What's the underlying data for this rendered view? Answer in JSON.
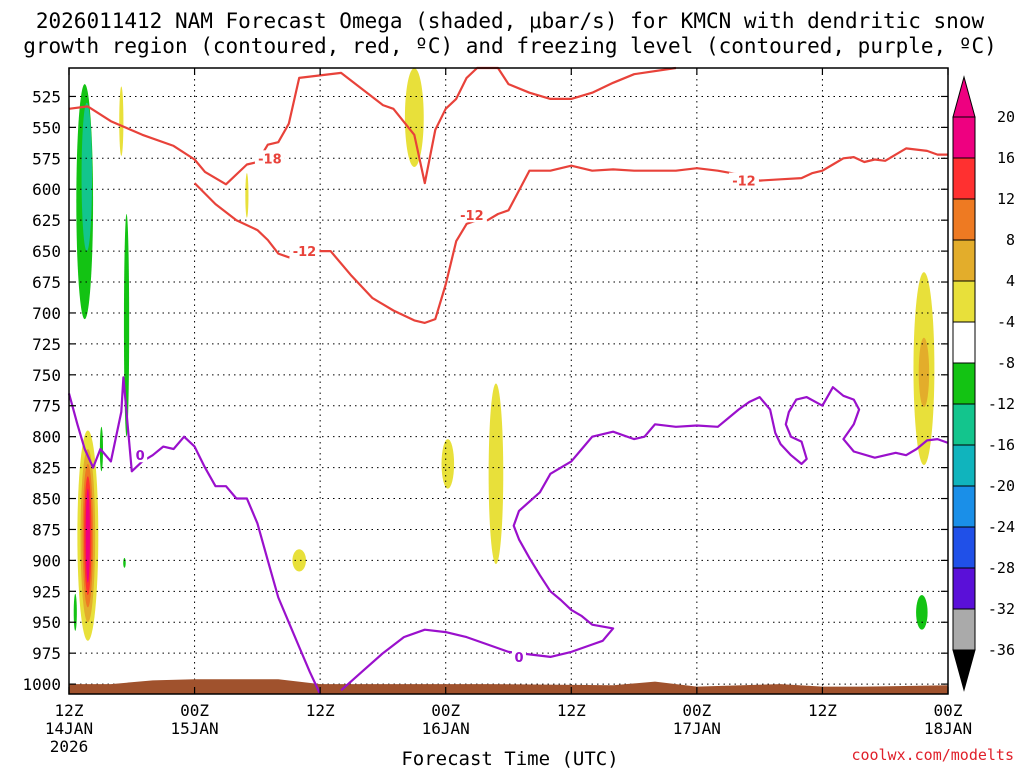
{
  "chart_data": {
    "type": "time-height cross section",
    "title_line1": "2026011412 NAM Forecast Omega (shaded, μbar/s) for KMCN with dendritic snow",
    "title_line2": "growth region (contoured, red, ºC) and freezing level (contoured, purple, ºC)",
    "xlabel": "Forecast Time (UTC)",
    "credit": "coolwx.com/modelts",
    "xlim": [
      0,
      84
    ],
    "x_ticks": [
      {
        "hour": 0,
        "l1": "12Z",
        "l2": "14JAN",
        "l3": "2026"
      },
      {
        "hour": 12,
        "l1": "00Z",
        "l2": "15JAN",
        "l3": ""
      },
      {
        "hour": 24,
        "l1": "12Z",
        "l2": "",
        "l3": ""
      },
      {
        "hour": 36,
        "l1": "00Z",
        "l2": "16JAN",
        "l3": ""
      },
      {
        "hour": 48,
        "l1": "12Z",
        "l2": "",
        "l3": ""
      },
      {
        "hour": 60,
        "l1": "00Z",
        "l2": "17JAN",
        "l3": ""
      },
      {
        "hour": 72,
        "l1": "12Z",
        "l2": "",
        "l3": ""
      },
      {
        "hour": 84,
        "l1": "00Z",
        "l2": "18JAN",
        "l3": ""
      }
    ],
    "ylim": [
      1008,
      502
    ],
    "y_ticks": [
      525,
      550,
      575,
      600,
      625,
      650,
      675,
      700,
      725,
      750,
      775,
      800,
      825,
      850,
      875,
      900,
      925,
      950,
      975,
      1000
    ],
    "colorbar": {
      "levels": [
        {
          "label": "20",
          "color": "#ee0080"
        },
        {
          "label": "16",
          "color": "#ff3030"
        },
        {
          "label": "12",
          "color": "#ee7a22"
        },
        {
          "label": "8",
          "color": "#e3ad2b"
        },
        {
          "label": "4",
          "color": "#e8e03a"
        },
        {
          "label": "-4",
          "color": "#ffffff"
        },
        {
          "label": "-8",
          "color": "#13c313"
        },
        {
          "label": "-12",
          "color": "#13c58d"
        },
        {
          "label": "-16",
          "color": "#10b4bd"
        },
        {
          "label": "-20",
          "color": "#1a8fe8"
        },
        {
          "label": "-24",
          "color": "#2050e8"
        },
        {
          "label": "-28",
          "color": "#5a10d8"
        },
        {
          "label": "-32",
          "color": "#a010c8"
        },
        {
          "label": "-36",
          "color": "#aaaaaa"
        }
      ],
      "top_arrow_color": "#ee0080",
      "bottom_arrow_color": "#000000"
    },
    "terrain": {
      "color": "#a0522d",
      "points": [
        [
          0,
          1000
        ],
        [
          4,
          1000
        ],
        [
          8,
          997
        ],
        [
          12,
          996
        ],
        [
          20,
          996
        ],
        [
          24,
          1000
        ],
        [
          40,
          1000
        ],
        [
          52,
          1001
        ],
        [
          56,
          998
        ],
        [
          60,
          1002
        ],
        [
          68,
          1000
        ],
        [
          72,
          1002
        ],
        [
          76,
          1002
        ],
        [
          84,
          1001
        ]
      ]
    },
    "omega_blobs": [
      {
        "cx": 1.5,
        "cy": 610,
        "rx": 0.8,
        "ry": 95,
        "color": "#13c313"
      },
      {
        "cx": 1.7,
        "cy": 590,
        "rx": 0.5,
        "ry": 60,
        "color": "#13c58d"
      },
      {
        "cx": 5.5,
        "cy": 710,
        "rx": 0.25,
        "ry": 90,
        "color": "#13c313"
      },
      {
        "cx": 5.0,
        "cy": 545,
        "rx": 0.2,
        "ry": 28,
        "color": "#e8e03a"
      },
      {
        "cx": 17.0,
        "cy": 605,
        "rx": 0.15,
        "ry": 18,
        "color": "#e8e03a"
      },
      {
        "cx": 33.0,
        "cy": 542,
        "rx": 0.9,
        "ry": 40,
        "color": "#e8e03a"
      },
      {
        "cx": 1.8,
        "cy": 880,
        "rx": 1.0,
        "ry": 85,
        "color": "#e8e03a"
      },
      {
        "cx": 1.8,
        "cy": 880,
        "rx": 0.7,
        "ry": 70,
        "color": "#e3ad2b"
      },
      {
        "cx": 1.8,
        "cy": 880,
        "rx": 0.5,
        "ry": 58,
        "color": "#ee7a22"
      },
      {
        "cx": 1.8,
        "cy": 880,
        "rx": 0.35,
        "ry": 48,
        "color": "#ff3030"
      },
      {
        "cx": 1.8,
        "cy": 880,
        "rx": 0.2,
        "ry": 38,
        "color": "#ee0080"
      },
      {
        "cx": 0.6,
        "cy": 942,
        "rx": 0.15,
        "ry": 15,
        "color": "#13c313"
      },
      {
        "cx": 3.1,
        "cy": 810,
        "rx": 0.15,
        "ry": 18,
        "color": "#13c313"
      },
      {
        "cx": 5.3,
        "cy": 902,
        "rx": 0.12,
        "ry": 4,
        "color": "#13c313"
      },
      {
        "cx": 22.0,
        "cy": 900,
        "rx": 0.65,
        "ry": 9,
        "color": "#e8e03a"
      },
      {
        "cx": 36.2,
        "cy": 822,
        "rx": 0.6,
        "ry": 20,
        "color": "#e8e03a"
      },
      {
        "cx": 40.8,
        "cy": 830,
        "rx": 0.7,
        "ry": 73,
        "color": "#e8e03a"
      },
      {
        "cx": 81.7,
        "cy": 745,
        "rx": 1.0,
        "ry": 78,
        "color": "#e8e03a"
      },
      {
        "cx": 81.7,
        "cy": 748,
        "rx": 0.5,
        "ry": 28,
        "color": "#e3ad2b"
      },
      {
        "cx": 81.5,
        "cy": 942,
        "rx": 0.55,
        "ry": 14,
        "color": "#13c313"
      }
    ],
    "contours": [
      {
        "label": "-18",
        "color": "#e8423a",
        "points": [
          [
            0,
            535
          ],
          [
            1.8,
            533
          ],
          [
            4,
            545
          ],
          [
            7,
            556
          ],
          [
            10,
            565
          ],
          [
            12,
            576
          ],
          [
            13,
            586
          ],
          [
            15,
            596
          ],
          [
            17,
            580
          ],
          [
            18,
            578
          ],
          [
            19,
            564
          ],
          [
            20,
            562
          ],
          [
            21,
            547
          ],
          [
            22,
            510
          ],
          [
            26,
            506
          ],
          [
            30,
            532
          ],
          [
            31,
            535
          ],
          [
            33,
            556
          ],
          [
            34,
            595
          ],
          [
            35,
            552
          ],
          [
            36,
            535
          ],
          [
            37,
            527
          ],
          [
            38,
            510
          ],
          [
            39,
            502
          ],
          [
            41,
            502
          ],
          [
            42,
            515
          ],
          [
            44,
            522
          ],
          [
            46,
            527
          ],
          [
            48,
            527
          ],
          [
            50,
            522
          ],
          [
            52,
            514
          ],
          [
            54,
            507
          ],
          [
            58,
            502
          ]
        ],
        "label_pos": [
          19.2,
          575
        ]
      },
      {
        "label": "-12",
        "color": "#e8423a",
        "points": [
          [
            12,
            595
          ],
          [
            14,
            612
          ],
          [
            16,
            625
          ],
          [
            18,
            633
          ],
          [
            19,
            641
          ],
          [
            20,
            652
          ],
          [
            21,
            655
          ],
          [
            22,
            652
          ],
          [
            23,
            650
          ],
          [
            25,
            650
          ],
          [
            27,
            670
          ],
          [
            29,
            688
          ],
          [
            31,
            698
          ],
          [
            33,
            706
          ],
          [
            34,
            708
          ],
          [
            35,
            705
          ],
          [
            36,
            677
          ],
          [
            37,
            642
          ],
          [
            38,
            628
          ],
          [
            39,
            625
          ],
          [
            40,
            625
          ],
          [
            41,
            620
          ],
          [
            42,
            617
          ],
          [
            43,
            601
          ],
          [
            44,
            585
          ],
          [
            46,
            585
          ],
          [
            48,
            581
          ],
          [
            50,
            585
          ],
          [
            52,
            584
          ],
          [
            54,
            585
          ],
          [
            56,
            585
          ],
          [
            58,
            585
          ],
          [
            60,
            583
          ],
          [
            62,
            585
          ],
          [
            64,
            588
          ],
          [
            66,
            593
          ],
          [
            68,
            592
          ],
          [
            70,
            591
          ],
          [
            71,
            587
          ],
          [
            72,
            585
          ],
          [
            73,
            580
          ],
          [
            74,
            575
          ],
          [
            75,
            574
          ],
          [
            76,
            578
          ],
          [
            77,
            576
          ],
          [
            78,
            577
          ],
          [
            79,
            572
          ],
          [
            80,
            567
          ],
          [
            82,
            569
          ],
          [
            83,
            572
          ],
          [
            84,
            572
          ]
        ],
        "label_pos": [
          22.5,
          650
        ]
      },
      {
        "label": "-12",
        "color": "#e8423a",
        "points": [],
        "label_pos": [
          38.5,
          621
        ]
      },
      {
        "label": "-12",
        "color": "#e8423a",
        "points": [],
        "label_pos": [
          64.5,
          593
        ]
      },
      {
        "label": "0",
        "color": "#9a10cc",
        "points": [
          [
            0,
            765
          ],
          [
            0.8,
            790
          ],
          [
            1.5,
            810
          ],
          [
            2.3,
            825
          ],
          [
            3.0,
            810
          ],
          [
            4.0,
            820
          ],
          [
            5.0,
            780
          ],
          [
            5.2,
            752
          ],
          [
            5.6,
            790
          ],
          [
            6.0,
            828
          ],
          [
            7.0,
            820
          ],
          [
            8.0,
            815
          ],
          [
            9.0,
            808
          ],
          [
            10.0,
            810
          ],
          [
            11.0,
            800
          ],
          [
            12.0,
            808
          ],
          [
            13.0,
            825
          ],
          [
            14.0,
            840
          ],
          [
            15.0,
            840
          ],
          [
            16.0,
            850
          ],
          [
            17.0,
            850
          ],
          [
            18.0,
            870
          ],
          [
            19.0,
            900
          ],
          [
            20.0,
            930
          ],
          [
            22.0,
            970
          ],
          [
            23.0,
            990
          ],
          [
            24.0,
            1008
          ]
        ],
        "label_pos": [
          6.8,
          815
        ]
      },
      {
        "label": "0",
        "color": "#9a10cc",
        "points": [
          [
            26,
            1005
          ],
          [
            28,
            990
          ],
          [
            30,
            975
          ],
          [
            32,
            962
          ],
          [
            34,
            956
          ],
          [
            36,
            958
          ],
          [
            38,
            962
          ],
          [
            40,
            968
          ],
          [
            42,
            974
          ],
          [
            44,
            976
          ],
          [
            46,
            978
          ],
          [
            48,
            974
          ],
          [
            50,
            968
          ],
          [
            51,
            965
          ],
          [
            52,
            955
          ],
          [
            50,
            952
          ],
          [
            49,
            945
          ],
          [
            48,
            940
          ],
          [
            47,
            932
          ],
          [
            46,
            925
          ],
          [
            45,
            912
          ],
          [
            44,
            898
          ],
          [
            43,
            883
          ],
          [
            42.5,
            872
          ],
          [
            43,
            860
          ],
          [
            45,
            845
          ],
          [
            46,
            830
          ],
          [
            48,
            820
          ],
          [
            49,
            810
          ],
          [
            50,
            800
          ],
          [
            52,
            796
          ],
          [
            54,
            802
          ],
          [
            55,
            800
          ],
          [
            56,
            790
          ],
          [
            58,
            792
          ],
          [
            60,
            791
          ],
          [
            62,
            792
          ],
          [
            63,
            785
          ],
          [
            64,
            778
          ],
          [
            65,
            772
          ],
          [
            66,
            768
          ],
          [
            67,
            778
          ],
          [
            67.5,
            797
          ],
          [
            68,
            806
          ],
          [
            69,
            815
          ],
          [
            70,
            822
          ],
          [
            70.5,
            818
          ],
          [
            70,
            804
          ],
          [
            69,
            800
          ],
          [
            68.5,
            790
          ],
          [
            68.8,
            780
          ],
          [
            69.5,
            770
          ],
          [
            70.5,
            768
          ],
          [
            72,
            775
          ],
          [
            73,
            760
          ],
          [
            74,
            767
          ],
          [
            75,
            770
          ],
          [
            75.5,
            778
          ],
          [
            75,
            790
          ],
          [
            74,
            802
          ],
          [
            75,
            812
          ],
          [
            77,
            817
          ],
          [
            79,
            813
          ],
          [
            80,
            815
          ],
          [
            81,
            810
          ],
          [
            82,
            803
          ],
          [
            83,
            802
          ],
          [
            84,
            805
          ]
        ],
        "label_pos": [
          43,
          978
        ]
      }
    ]
  }
}
